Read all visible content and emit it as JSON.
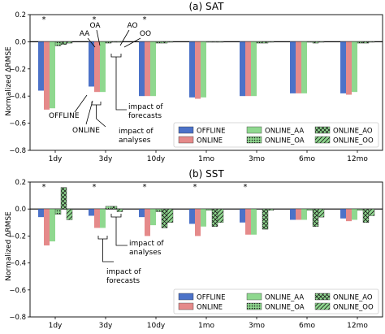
{
  "chart_data": [
    {
      "type": "bar",
      "title": "(a) SAT",
      "ylabel": "Normalized ΔRMSE",
      "ylim": [
        -0.8,
        0.2
      ],
      "yticks": [
        -0.8,
        -0.6,
        -0.4,
        -0.2,
        0.0,
        0.2
      ],
      "yticklabels": [
        "−0.8",
        "−0.6",
        "−0.4",
        "−0.2",
        "0.0",
        "0.2"
      ],
      "categories": [
        "1dy",
        "3dy",
        "10dy",
        "1mo",
        "3mo",
        "6mo",
        "12mo"
      ],
      "significance_markers": [
        "*",
        "*",
        "*",
        "",
        "",
        "",
        ""
      ],
      "legend_position": "lower-right",
      "series": [
        {
          "name": "OFFLINE",
          "color": "#4c72c8",
          "hatch": "none",
          "values": [
            -0.36,
            -0.33,
            -0.4,
            -0.41,
            -0.4,
            -0.38,
            -0.38
          ]
        },
        {
          "name": "ONLINE",
          "color": "#e58a8a",
          "hatch": "none",
          "values": [
            -0.5,
            -0.37,
            -0.4,
            -0.42,
            -0.4,
            -0.38,
            -0.39
          ]
        },
        {
          "name": "ONLINE_AA",
          "color": "#8fd88f",
          "hatch": "none",
          "values": [
            -0.49,
            -0.37,
            -0.4,
            -0.41,
            -0.4,
            -0.38,
            -0.37
          ]
        },
        {
          "name": "ONLINE_OA",
          "color": "#8fd88f",
          "hatch": "dots",
          "values": [
            -0.03,
            -0.01,
            -0.01,
            0.0,
            -0.01,
            0.0,
            -0.01
          ]
        },
        {
          "name": "ONLINE_AO",
          "color": "#8fd88f",
          "hatch": "cross",
          "values": [
            -0.02,
            0.0,
            -0.01,
            0.0,
            -0.01,
            -0.01,
            -0.01
          ]
        },
        {
          "name": "ONLINE_OO",
          "color": "#8fd88f",
          "hatch": "diag",
          "values": [
            -0.01,
            0.0,
            0.0,
            0.0,
            0.0,
            0.0,
            0.0
          ]
        }
      ],
      "annotations": {
        "top_labels": [
          "OA",
          "AO",
          "AA",
          "OO"
        ],
        "offline": "OFFLINE",
        "online": "ONLINE",
        "impact_analyses": [
          "impact of",
          "analyses"
        ],
        "impact_forecasts": [
          "impact of",
          "forecasts"
        ]
      }
    },
    {
      "type": "bar",
      "title": "(b) SST",
      "ylabel": "Normalized ΔRMSE",
      "ylim": [
        -0.8,
        0.2
      ],
      "yticks": [
        -0.8,
        -0.6,
        -0.4,
        -0.2,
        0.0,
        0.2
      ],
      "yticklabels": [
        "−0.8",
        "−0.6",
        "−0.4",
        "−0.2",
        "0.0",
        "0.2"
      ],
      "categories": [
        "1dy",
        "3dy",
        "10dy",
        "1mo",
        "3mo",
        "6mo",
        "12mo"
      ],
      "significance_markers": [
        "*",
        "*",
        "*",
        "*",
        "*",
        "",
        ""
      ],
      "legend_position": "lower-right",
      "series": [
        {
          "name": "OFFLINE",
          "color": "#4c72c8",
          "hatch": "none",
          "values": [
            -0.06,
            -0.05,
            -0.06,
            -0.11,
            -0.1,
            -0.08,
            -0.07
          ]
        },
        {
          "name": "ONLINE",
          "color": "#e58a8a",
          "hatch": "none",
          "values": [
            -0.27,
            -0.14,
            -0.2,
            -0.2,
            -0.19,
            -0.08,
            -0.09
          ]
        },
        {
          "name": "ONLINE_AA",
          "color": "#8fd88f",
          "hatch": "none",
          "values": [
            -0.24,
            -0.14,
            -0.12,
            -0.13,
            -0.19,
            -0.08,
            -0.08
          ]
        },
        {
          "name": "ONLINE_OA",
          "color": "#8fd88f",
          "hatch": "dots",
          "values": [
            -0.04,
            0.02,
            -0.02,
            -0.01,
            0.0,
            -0.01,
            -0.01
          ]
        },
        {
          "name": "ONLINE_AO",
          "color": "#8fd88f",
          "hatch": "cross",
          "values": [
            0.16,
            0.02,
            -0.14,
            -0.13,
            -0.15,
            -0.13,
            -0.1
          ]
        },
        {
          "name": "ONLINE_OO",
          "color": "#8fd88f",
          "hatch": "diag",
          "values": [
            -0.08,
            -0.02,
            -0.1,
            -0.1,
            -0.01,
            -0.06,
            -0.05
          ]
        }
      ],
      "annotations": {
        "impact_analyses": [
          "impact of",
          "analyses"
        ],
        "impact_forecasts": [
          "impact of",
          "forecasts"
        ]
      }
    }
  ]
}
